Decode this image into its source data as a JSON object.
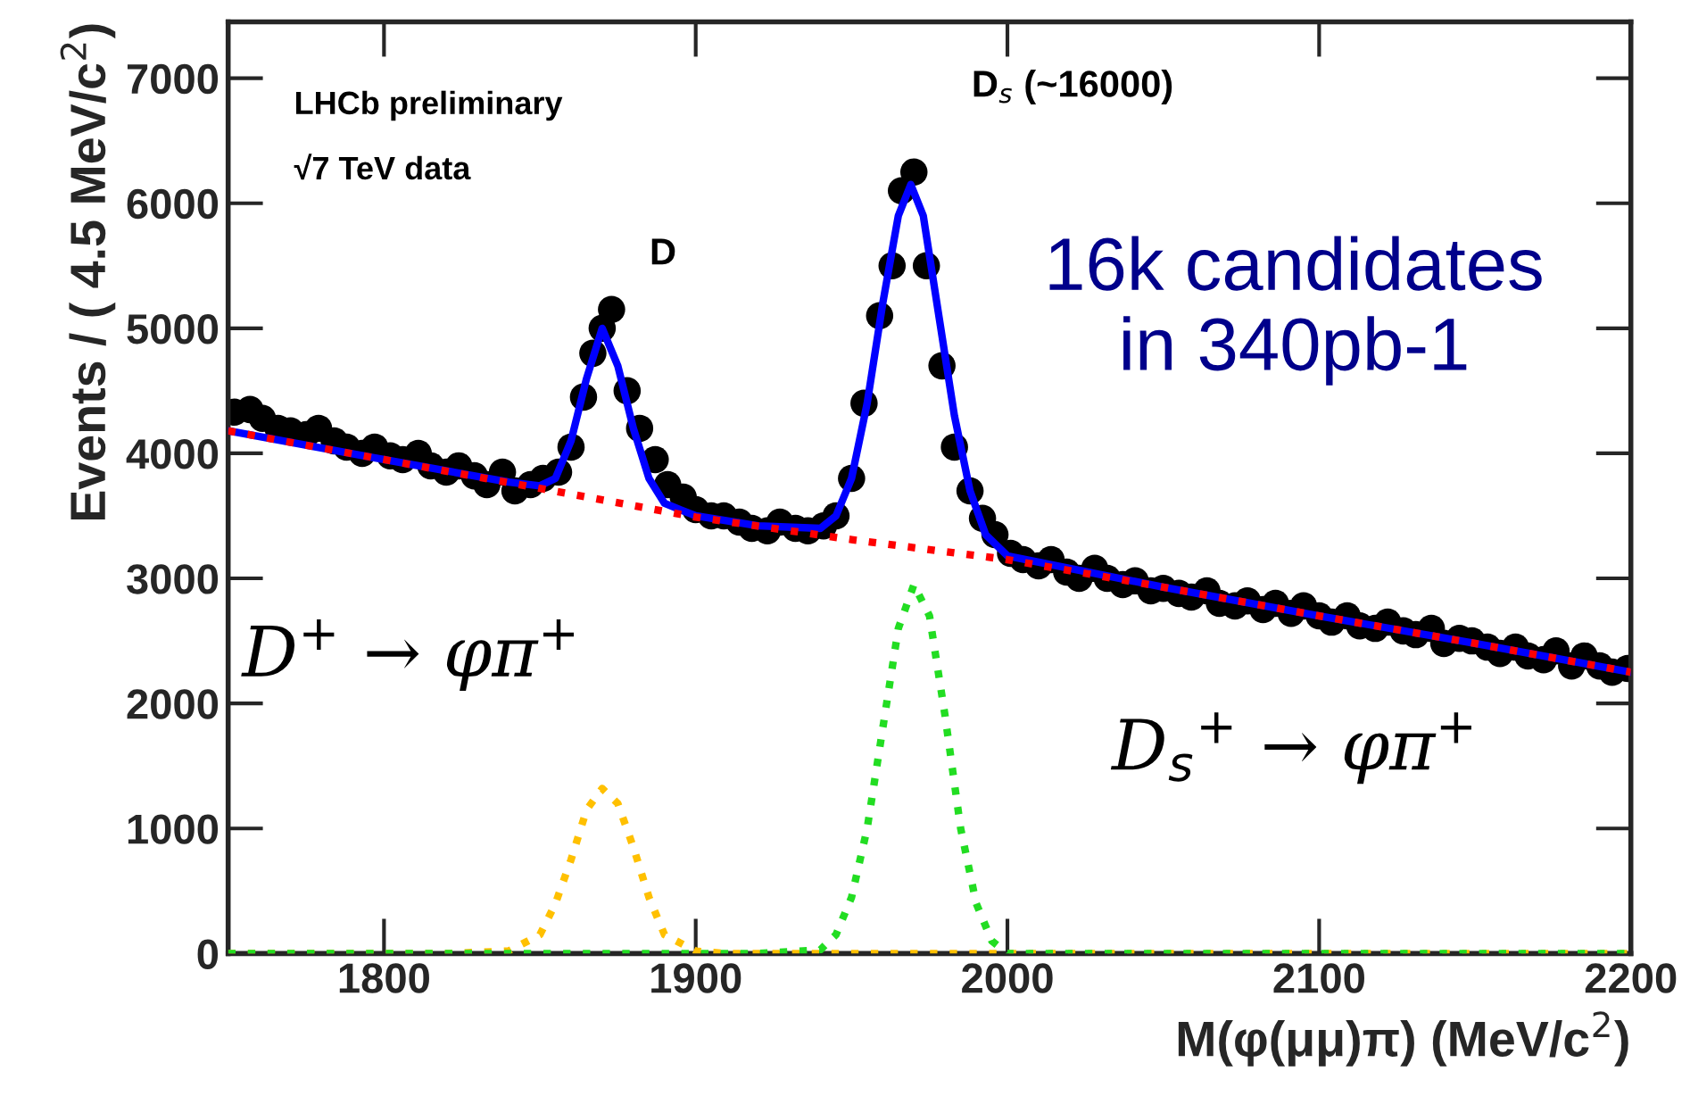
{
  "chart_data": {
    "type": "scatter",
    "xlabel": "M(φ(μμ)π) (MeV/c$^{2}$)",
    "ylabel": "Events / ( 4.5 MeV/c$^{2}$)",
    "xlim": [
      1750,
      2200
    ],
    "ylim": [
      0,
      7450
    ],
    "xticks": [
      1800,
      1900,
      2000,
      2100,
      2200
    ],
    "yticks": [
      0,
      1000,
      2000,
      3000,
      4000,
      5000,
      6000,
      7000
    ],
    "grid": false,
    "legend": false,
    "annotations": [
      "LHCb preliminary",
      "√7 TeV data",
      "D",
      "D$_{s}$ (~16000)",
      "16k candidates\nin 340pb-1",
      "D$^{+}$ → φπ$^{+}$",
      "D$_{s}$$^{+}$ → φπ$^{+}$"
    ],
    "series": [
      {
        "type": "line",
        "line_style": "dotted",
        "marker": "none",
        "color": "#ffc000",
        "x": [
          1750,
          1820,
          1840,
          1850,
          1855,
          1860,
          1865,
          1870,
          1875,
          1880,
          1885,
          1890,
          1900,
          1910,
          2200
        ],
        "values": [
          0,
          0,
          20,
          150,
          400,
          750,
          1150,
          1320,
          1200,
          850,
          450,
          150,
          20,
          0,
          0
        ]
      },
      {
        "type": "line",
        "line_style": "dotted",
        "marker": "none",
        "color": "#22dd22",
        "x": [
          1750,
          1920,
          1940,
          1945,
          1950,
          1955,
          1960,
          1965,
          1970,
          1975,
          1980,
          1985,
          1990,
          1995,
          2000,
          2200
        ],
        "values": [
          0,
          0,
          30,
          150,
          450,
          1000,
          1800,
          2600,
          2950,
          2700,
          1900,
          1000,
          400,
          100,
          0,
          0
        ]
      },
      {
        "marker": "circle",
        "color": "#000000",
        "x": [
          1752,
          1757,
          1761,
          1766,
          1770,
          1775,
          1779,
          1784,
          1788,
          1793,
          1797,
          1802,
          1806,
          1811,
          1815,
          1820,
          1824,
          1829,
          1833,
          1838,
          1842,
          1847,
          1851,
          1856,
          1860,
          1864,
          1867,
          1870,
          1873,
          1878,
          1882,
          1887,
          1891,
          1896,
          1900,
          1905,
          1909,
          1914,
          1918,
          1923,
          1927,
          1932,
          1936,
          1941,
          1945,
          1950,
          1954,
          1959,
          1963,
          1966,
          1970,
          1974,
          1979,
          1983,
          1988,
          1992,
          1996,
          2001,
          2005,
          2010,
          2014,
          2019,
          2023,
          2028,
          2032,
          2037,
          2041,
          2046,
          2050,
          2055,
          2059,
          2064,
          2068,
          2073,
          2077,
          2082,
          2086,
          2091,
          2095,
          2100,
          2104,
          2109,
          2113,
          2118,
          2122,
          2127,
          2131,
          2136,
          2140,
          2145,
          2149,
          2154,
          2158,
          2163,
          2167,
          2172,
          2176,
          2181,
          2185,
          2190,
          2194,
          2199
        ],
        "values": [
          4330,
          4350,
          4280,
          4200,
          4180,
          4150,
          4200,
          4100,
          4050,
          4000,
          4050,
          3980,
          3950,
          4000,
          3900,
          3850,
          3900,
          3820,
          3750,
          3850,
          3700,
          3750,
          3800,
          3850,
          4050,
          4450,
          4800,
          5000,
          5150,
          4500,
          4200,
          3950,
          3750,
          3650,
          3550,
          3500,
          3500,
          3450,
          3400,
          3380,
          3450,
          3400,
          3380,
          3420,
          3500,
          3800,
          4400,
          5100,
          5500,
          6100,
          6250,
          5500,
          4700,
          4050,
          3700,
          3480,
          3350,
          3200,
          3150,
          3100,
          3150,
          3050,
          3000,
          3080,
          3000,
          2950,
          2980,
          2900,
          2920,
          2880,
          2850,
          2900,
          2800,
          2780,
          2820,
          2750,
          2800,
          2720,
          2780,
          2700,
          2650,
          2700,
          2620,
          2600,
          2650,
          2580,
          2550,
          2600,
          2480,
          2520,
          2500,
          2450,
          2400,
          2450,
          2380,
          2350,
          2420,
          2300,
          2380,
          2300,
          2250,
          2280
        ]
      },
      {
        "type": "line",
        "line_style": "solid",
        "marker": "none",
        "color": "#0000ff",
        "x": [
          1750,
          1800,
          1840,
          1850,
          1855,
          1860,
          1865,
          1870,
          1875,
          1880,
          1885,
          1890,
          1900,
          1920,
          1940,
          1945,
          1950,
          1955,
          1960,
          1965,
          1969,
          1973,
          1978,
          1983,
          1988,
          1993,
          2000,
          2050,
          2100,
          2150,
          2200
        ],
        "values": [
          4180,
          3950,
          3770,
          3740,
          3800,
          4100,
          4600,
          5000,
          4700,
          4200,
          3800,
          3600,
          3500,
          3420,
          3400,
          3500,
          3800,
          4400,
          5200,
          5900,
          6150,
          5900,
          5100,
          4300,
          3700,
          3350,
          3180,
          2930,
          2700,
          2480,
          2250
        ]
      },
      {
        "type": "line",
        "line_style": "dotted",
        "marker": "none",
        "color": "#ff0000",
        "x": [
          1750,
          1800,
          1850,
          1900,
          1950,
          2000,
          2050,
          2100,
          2150,
          2200
        ],
        "values": [
          4180,
          3950,
          3720,
          3490,
          3310,
          3150,
          2930,
          2700,
          2480,
          2250
        ]
      }
    ]
  }
}
